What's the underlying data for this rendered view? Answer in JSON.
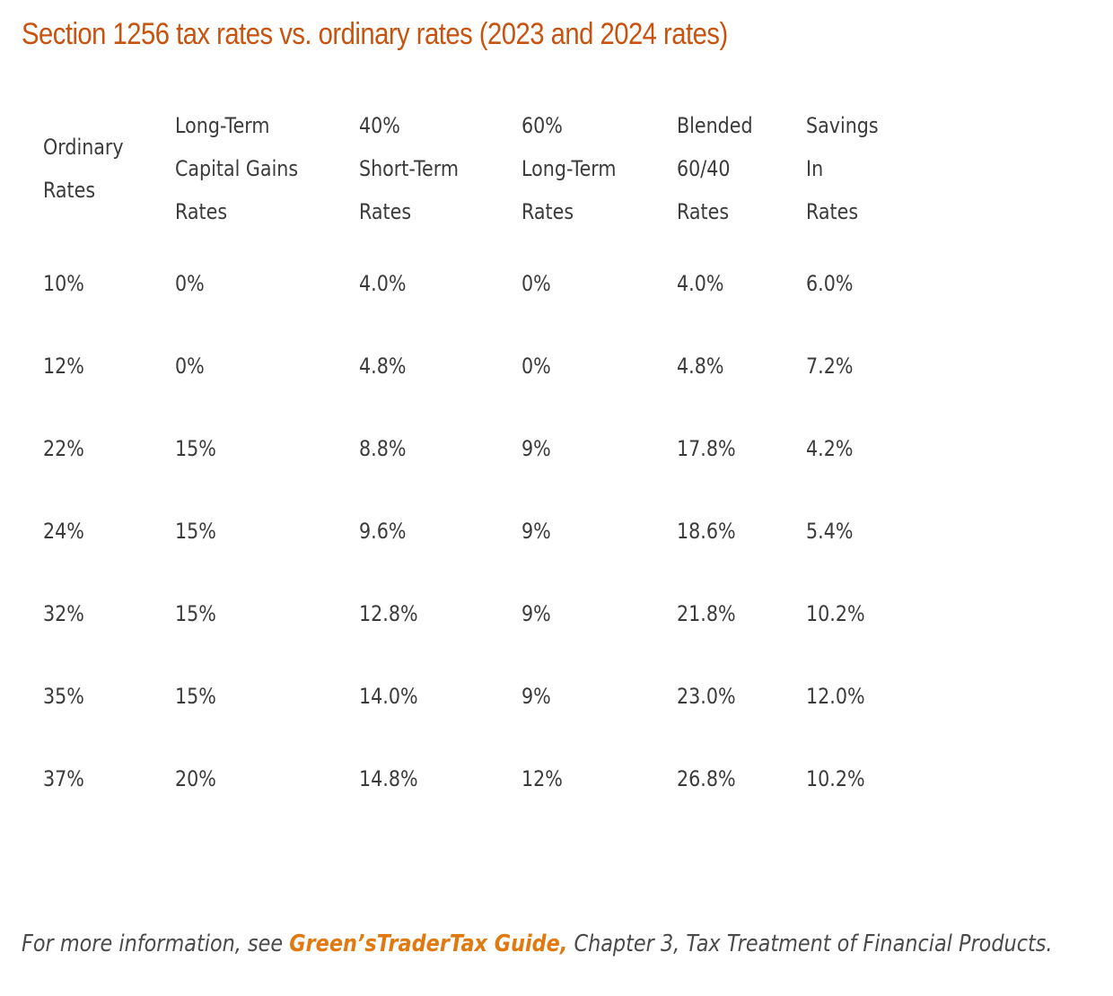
{
  "title": "Section 1256 tax rates vs. ordinary rates (2023 and 2024 rates)",
  "table": {
    "headers": [
      [
        "Ordinary",
        "Rates"
      ],
      [
        "Long-Term",
        "Capital Gains",
        "Rates"
      ],
      [
        "40%",
        "Short-Term",
        "Rates"
      ],
      [
        "60%",
        "Long-Term",
        "Rates"
      ],
      [
        "Blended",
        "60/40",
        "Rates"
      ],
      [
        "Savings",
        "In",
        "Rates"
      ]
    ],
    "rows": [
      [
        "10%",
        "0%",
        "4.0%",
        "0%",
        "4.0%",
        "6.0%"
      ],
      [
        "12%",
        "0%",
        "4.8%",
        "0%",
        "4.8%",
        "7.2%"
      ],
      [
        "22%",
        "15%",
        "8.8%",
        "9%",
        "17.8%",
        "4.2%"
      ],
      [
        "24%",
        "15%",
        "9.6%",
        "9%",
        "18.6%",
        "5.4%"
      ],
      [
        "32%",
        "15%",
        "12.8%",
        "9%",
        "21.8%",
        "10.2%"
      ],
      [
        "35%",
        "15%",
        "14.0%",
        "9%",
        "23.0%",
        "12.0%"
      ],
      [
        "37%",
        "20%",
        "14.8%",
        "12%",
        "26.8%",
        "10.2%"
      ]
    ]
  },
  "footnote": {
    "prefix": "For more information, see ",
    "link_text": "Green’sTraderTax Guide,",
    "suffix": " Chapter 3, Tax Treatment of Financial Products."
  },
  "colors": {
    "title": "#c8530f",
    "link": "#e07a10",
    "text": "#3b3b3b"
  }
}
